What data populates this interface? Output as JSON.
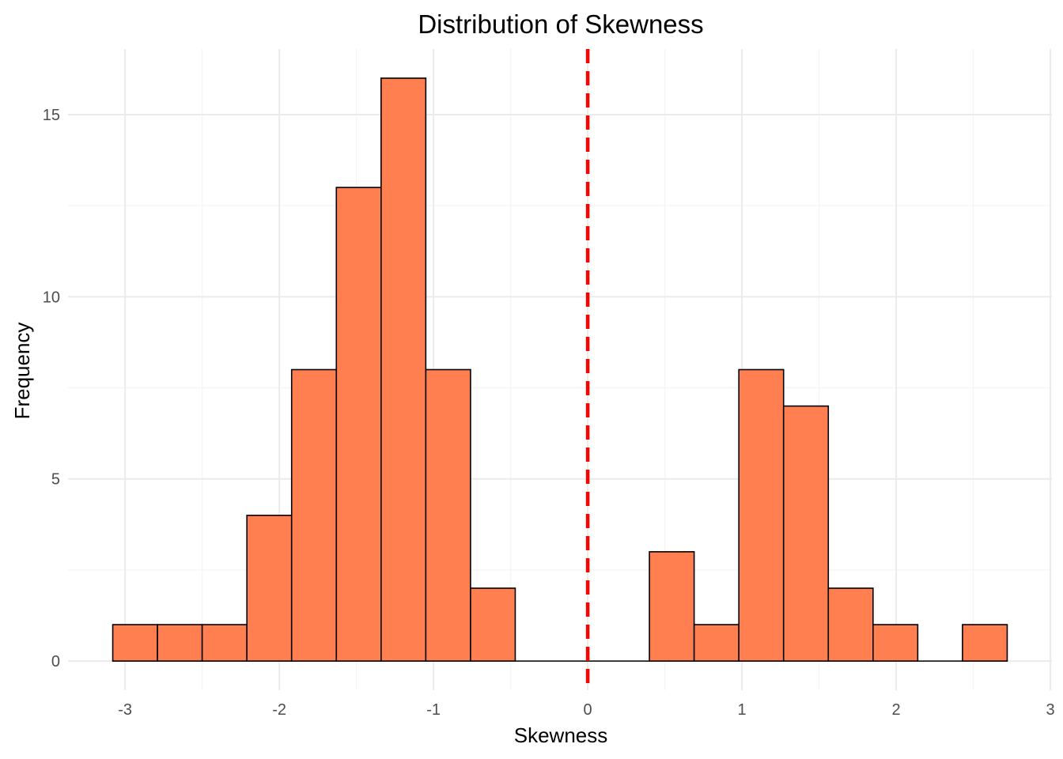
{
  "chart_data": {
    "type": "bar",
    "title": "Distribution of Skewness",
    "xlabel": "Skewness",
    "ylabel": "Frequency",
    "bin_edges": [
      -3.08,
      -2.79,
      -2.5,
      -2.21,
      -1.92,
      -1.63,
      -1.34,
      -1.05,
      -0.76,
      -0.47,
      -0.18,
      0.11,
      0.4,
      0.69,
      0.98,
      1.27,
      1.56,
      1.85,
      2.14,
      2.43,
      2.72
    ],
    "counts": [
      1,
      1,
      1,
      4,
      8,
      13,
      16,
      8,
      2,
      0,
      0,
      0,
      3,
      1,
      8,
      7,
      2,
      1,
      0,
      1
    ],
    "xlim": [
      -3.37,
      3.01
    ],
    "ylim": [
      -0.8,
      16.8
    ],
    "x_ticks": [
      -3,
      -2,
      -1,
      0,
      1,
      2,
      3
    ],
    "y_ticks": [
      0,
      5,
      10,
      15
    ],
    "x_tick_labels": [
      "-3",
      "-2",
      "-1",
      "0",
      "1",
      "2",
      "3"
    ],
    "y_tick_labels": [
      "0",
      "5",
      "10",
      "15"
    ],
    "reference_line": {
      "x": 0,
      "style": "dashed"
    },
    "grid": true,
    "colors": {
      "bar_fill": "#FF7F50",
      "bar_stroke": "#000000",
      "reference_line": "#FF0000",
      "grid_major": "#EBEBEB",
      "grid_minor": "#F5F5F5"
    }
  }
}
